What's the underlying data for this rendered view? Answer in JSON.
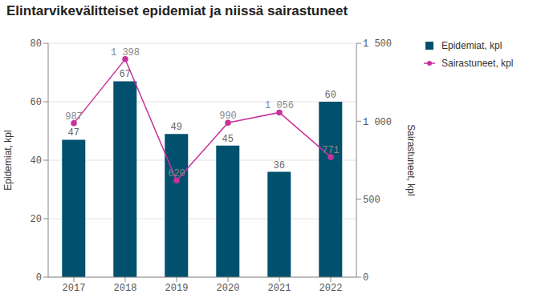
{
  "chart_data": {
    "type": "bar",
    "title": "Elintarvikevälitteiset epidemiat ja niissä sairastuneet",
    "categories": [
      "2017",
      "2018",
      "2019",
      "2020",
      "2021",
      "2022"
    ],
    "series": [
      {
        "name": "Epidemiat, kpl",
        "type": "bar",
        "color": "#00506e",
        "values": [
          47,
          67,
          49,
          45,
          36,
          60
        ]
      },
      {
        "name": "Sairastuneet, kpl",
        "type": "line",
        "color": "#c8329b",
        "marker": "circle",
        "axis": "y2",
        "values": [
          987,
          1398,
          620,
          990,
          1056,
          771
        ],
        "value_labels": [
          "987",
          "1 398",
          "620",
          "990",
          "1 056",
          "771"
        ]
      }
    ],
    "y_label": "Epidemiat, kpl",
    "y2_label": "Sairastuneet, kpl",
    "ylim": [
      0,
      80
    ],
    "yticks": [
      0,
      20,
      40,
      60,
      80
    ],
    "y2lim": [
      0,
      1500
    ],
    "y2ticks": [
      0,
      500,
      {
        "value": 1000,
        "label": "1 000"
      },
      {
        "value": 1500,
        "label": "1 500"
      }
    ],
    "grid": true,
    "legend": "right",
    "data_labels": true
  }
}
